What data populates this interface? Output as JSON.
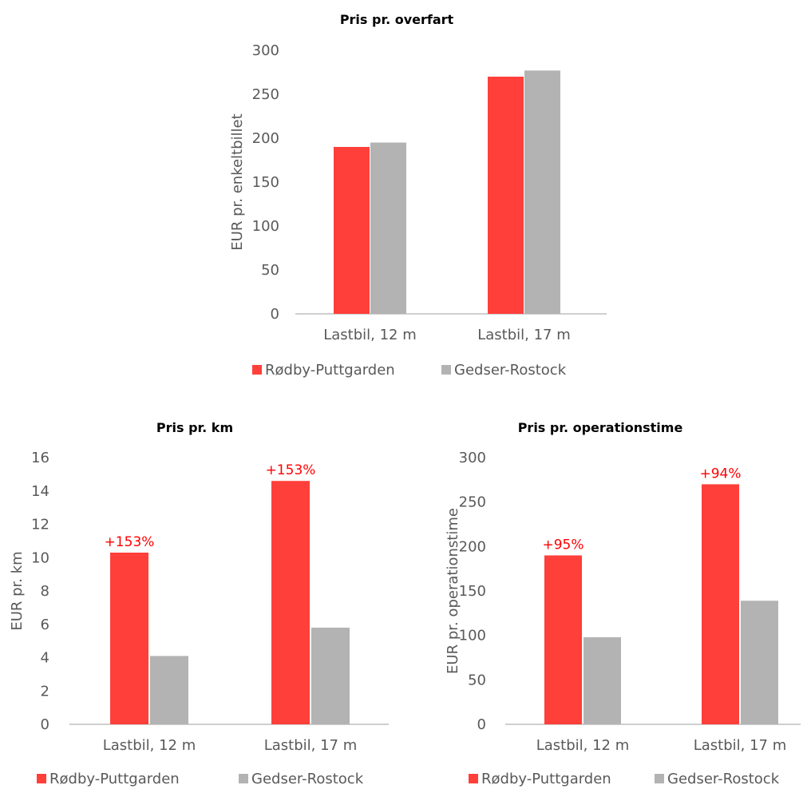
{
  "colors": {
    "series1": "#ff3f3a",
    "series2": "#b3b3b3",
    "axis": "#bfbfbf",
    "text": "#595959",
    "annotation": "#ff0000"
  },
  "chart_data": [
    {
      "type": "bar",
      "title": "Pris pr. overfart",
      "ylabel": "EUR pr. enkeltbillet",
      "xlabel": "",
      "ylim": [
        0,
        300
      ],
      "yticks": [
        "0",
        "50",
        "100",
        "150",
        "200",
        "250",
        "300"
      ],
      "categories": [
        "Lastbil, 12 m",
        "Lastbil, 17 m"
      ],
      "series": [
        {
          "name": "Rødby-Puttgarden",
          "values": [
            190,
            270
          ]
        },
        {
          "name": "Gedser-Rostock",
          "values": [
            195,
            277
          ]
        }
      ],
      "annotations": [],
      "legend": "bottom"
    },
    {
      "type": "bar",
      "title": "Pris pr. km",
      "ylabel": "EUR pr. km",
      "xlabel": "",
      "ylim": [
        0,
        16
      ],
      "yticks": [
        "0",
        "2",
        "4",
        "6",
        "8",
        "10",
        "12",
        "14",
        "16"
      ],
      "categories": [
        "Lastbil, 12 m",
        "Lastbil, 17 m"
      ],
      "series": [
        {
          "name": "Rødby-Puttgarden",
          "values": [
            10.3,
            14.6
          ]
        },
        {
          "name": "Gedser-Rostock",
          "values": [
            4.1,
            5.8
          ]
        }
      ],
      "annotations": [
        "+153%",
        "+153%"
      ],
      "legend": "bottom"
    },
    {
      "type": "bar",
      "title": "Pris pr. operationstime",
      "ylabel": "EUR pr. operationstime",
      "xlabel": "",
      "ylim": [
        0,
        300
      ],
      "yticks": [
        "0",
        "50",
        "100",
        "150",
        "200",
        "250",
        "300"
      ],
      "categories": [
        "Lastbil, 12 m",
        "Lastbil, 17 m"
      ],
      "series": [
        {
          "name": "Rødby-Puttgarden",
          "values": [
            190,
            270
          ]
        },
        {
          "name": "Gedser-Rostock",
          "values": [
            98,
            139
          ]
        }
      ],
      "annotations": [
        "+95%",
        "+94%"
      ],
      "legend": "bottom"
    }
  ]
}
